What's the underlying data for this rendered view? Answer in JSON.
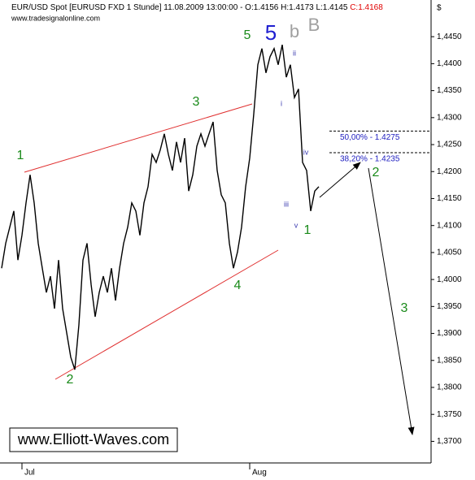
{
  "chart_data": {
    "type": "line",
    "title": "EUR/USD Spot [EURUSD FXD  1 Stunde] 11.08.2009 13:00:00 - O:1.4156 H:1.4173 L:1.4145",
    "close_label": "C:1.4168",
    "subtitle": "www.tradesignalonline.com",
    "axis_unit": "$",
    "watermark": "www.Elliott-Waves.com",
    "categories": [
      null,
      null,
      null,
      null,
      null,
      "Jul",
      null,
      null,
      null,
      null,
      null,
      null,
      null,
      null,
      null,
      null,
      null,
      null,
      null,
      null,
      null,
      null,
      null,
      null,
      null,
      null,
      null,
      null,
      null,
      null,
      null,
      null,
      null,
      null,
      null,
      null,
      null,
      null,
      null,
      null,
      null,
      null,
      null,
      null,
      null,
      null,
      null,
      null,
      null,
      null,
      null,
      null,
      null,
      null,
      null,
      null,
      null,
      null,
      null,
      null,
      null,
      "Aug",
      null,
      null,
      null,
      null,
      null,
      null,
      null,
      null,
      null,
      null,
      null,
      null,
      null,
      null,
      null,
      null,
      null
    ],
    "series": [
      {
        "name": "EUR/USD",
        "color": "#000000",
        "values": [
          1.4021,
          1.4067,
          1.4097,
          1.4127,
          1.4036,
          1.4082,
          1.4142,
          1.4194,
          1.4142,
          1.4067,
          1.4021,
          1.3976,
          1.4006,
          1.3946,
          1.4036,
          1.3946,
          1.3901,
          1.3856,
          1.3833,
          1.3916,
          1.4036,
          1.4067,
          1.3991,
          1.3931,
          1.3976,
          1.4006,
          1.3976,
          1.4021,
          1.3961,
          1.4021,
          1.4067,
          1.4097,
          1.4142,
          1.4127,
          1.4082,
          1.4142,
          1.4172,
          1.4232,
          1.4217,
          1.424,
          1.427,
          1.4232,
          1.4202,
          1.4255,
          1.4217,
          1.4262,
          1.4164,
          1.4194,
          1.4247,
          1.427,
          1.4247,
          1.427,
          1.4292,
          1.4202,
          1.4157,
          1.4142,
          1.4067,
          1.4021,
          1.4051,
          1.4097,
          1.4172,
          1.4225,
          1.4307,
          1.4398,
          1.4428,
          1.4383,
          1.4413,
          1.4428,
          1.4398,
          1.4435,
          1.4375,
          1.4398,
          1.4337,
          1.4353,
          1.4217,
          1.4202,
          1.4127,
          1.4164,
          1.4172
        ]
      }
    ],
    "ylim": [
      1.366,
      1.4518
    ],
    "yticks": [
      {
        "value": 1.37,
        "label": "1,3700"
      },
      {
        "value": 1.375,
        "label": "1,3750"
      },
      {
        "value": 1.38,
        "label": "1,3800"
      },
      {
        "value": 1.385,
        "label": "1,3850"
      },
      {
        "value": 1.39,
        "label": "1,3900"
      },
      {
        "value": 1.395,
        "label": "1,3950"
      },
      {
        "value": 1.4,
        "label": "1,4000"
      },
      {
        "value": 1.405,
        "label": "1,4050"
      },
      {
        "value": 1.41,
        "label": "1,4100"
      },
      {
        "value": 1.415,
        "label": "1,4150"
      },
      {
        "value": 1.42,
        "label": "1,4200"
      },
      {
        "value": 1.425,
        "label": "1,4250"
      },
      {
        "value": 1.43,
        "label": "1,4300"
      },
      {
        "value": 1.435,
        "label": "1,4350"
      },
      {
        "value": 1.44,
        "label": "1,4400"
      },
      {
        "value": 1.445,
        "label": "1,4450"
      }
    ],
    "grid": false,
    "fib_levels": [
      {
        "value": 1.4275,
        "label": "50,00% - 1.4275"
      },
      {
        "value": 1.4235,
        "label": "38,20% - 1.4235"
      }
    ],
    "annotations": [
      {
        "text": "1",
        "color": "#1a8a1a"
      },
      {
        "text": "2",
        "color": "#1a8a1a"
      },
      {
        "text": "3",
        "color": "#1a8a1a"
      },
      {
        "text": "4",
        "color": "#1a8a1a"
      },
      {
        "text": "5",
        "color": "#1a8a1a"
      },
      {
        "text": "5",
        "color": "#1f1fd0"
      },
      {
        "text": "b",
        "color": "#a0a0a0"
      },
      {
        "text": "B",
        "color": "#a0a0a0"
      },
      {
        "text": "ii",
        "color": "#3a3ab0"
      },
      {
        "text": "i",
        "color": "#3a3ab0"
      },
      {
        "text": "iv",
        "color": "#3a3ab0"
      },
      {
        "text": "iii",
        "color": "#3a3ab0"
      },
      {
        "text": "v",
        "color": "#3a3ab0"
      },
      {
        "text": "1",
        "color": "#1a8a1a"
      },
      {
        "text": "2",
        "color": "#1a8a1a"
      },
      {
        "text": "3",
        "color": "#1a8a1a"
      }
    ]
  }
}
